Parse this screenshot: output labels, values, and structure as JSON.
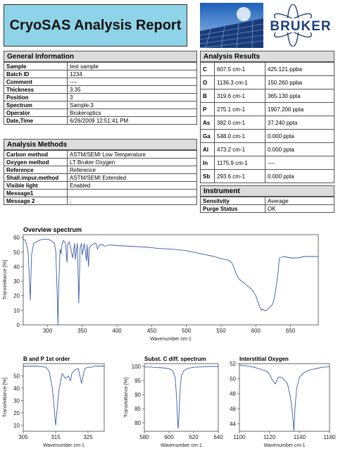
{
  "header": {
    "title": "CryoSAS Analysis Report",
    "logo_text": "BRUKER",
    "colors": {
      "title_bg": "#8fd3e8",
      "logo": "#1f3f7a",
      "accent_blue": "#3a5ba8"
    }
  },
  "general": {
    "heading": "General Information",
    "rows": [
      {
        "k": "Sample",
        "v": "test sample"
      },
      {
        "k": "Batch ID",
        "v": "1234"
      },
      {
        "k": "Comment",
        "v": "----"
      },
      {
        "k": "Thickness",
        "v": "3.35"
      },
      {
        "k": "Position",
        "v": "3"
      },
      {
        "k": "Spectrum",
        "v": "Sample.3"
      },
      {
        "k": "Operator",
        "v": "Brukeroptics"
      },
      {
        "k": "Date,Time",
        "v": "6/26/2009 12:51:41 PM"
      }
    ]
  },
  "methods": {
    "heading": "Analysis Methods",
    "rows": [
      {
        "k": "Carbon method",
        "v": "ASTM/SEMI Low Temperature"
      },
      {
        "k": "Oxygen method",
        "v": "LT Bruker Oxygen"
      },
      {
        "k": "Reference",
        "v": "Reference"
      },
      {
        "k": "Shall.impur.method",
        "v": "ASTM/SEMI Extended"
      },
      {
        "k": "Visible light",
        "v": "Enabled"
      },
      {
        "k": "Message1",
        "v": ""
      },
      {
        "k": "Message 2",
        "v": ";"
      }
    ]
  },
  "results": {
    "heading": "Analysis Results",
    "rows": [
      {
        "el": "C",
        "pos": "607.5 cm-1",
        "val": "425.121 ppba"
      },
      {
        "el": "O",
        "pos": "1136.3 cm-1",
        "val": "150.260 ppba"
      },
      {
        "el": "B",
        "pos": "319.6 cm-1",
        "val": "365.130 ppta"
      },
      {
        "el": "P",
        "pos": "275.1 cm-1",
        "val": "1907.200 ppta"
      },
      {
        "el": "As",
        "pos": "382.0 cm-1",
        "val": "37.240 ppta"
      },
      {
        "el": "Ga",
        "pos": "548.0 cm-1",
        "val": "0.000 ppta"
      },
      {
        "el": "Al",
        "pos": "473.2 cm-1",
        "val": "0.000 ppta"
      },
      {
        "el": "In",
        "pos": "1175.9 cm-1",
        "val": "----"
      },
      {
        "el": "Sb",
        "pos": "293.6 cm-1",
        "val": "0.000 ppta"
      }
    ]
  },
  "instrument": {
    "heading": "Instrument",
    "rows": [
      {
        "k": "Sensitvity",
        "v": "Average"
      },
      {
        "k": "Purge Status",
        "v": "OK"
      }
    ]
  },
  "chart_data": [
    {
      "type": "line",
      "title": "Overview spectrum",
      "xlabel": "Wavenumber cm-1",
      "ylabel": "Transmittance [%]",
      "xlim": [
        265,
        690
      ],
      "ylim": [
        0,
        62
      ],
      "xticks": [
        300,
        350,
        400,
        450,
        500,
        550,
        600,
        650
      ],
      "yticks": [
        0,
        10,
        20,
        30,
        40,
        50,
        60
      ],
      "x": [
        265,
        268,
        270,
        272,
        274,
        275.1,
        277,
        280,
        290,
        300,
        305,
        310,
        312,
        314,
        315,
        316,
        318,
        319.6,
        321,
        323,
        326,
        328,
        329,
        331,
        333,
        336,
        339,
        340,
        343,
        345,
        347,
        349,
        350,
        353,
        356,
        357,
        359,
        360,
        365,
        370,
        372,
        375,
        380,
        382,
        390,
        400,
        420,
        440,
        460,
        480,
        500,
        520,
        540,
        550,
        560,
        565,
        568,
        571,
        574,
        577,
        580,
        585,
        590,
        595,
        600,
        603,
        606,
        608,
        610,
        612,
        615,
        618,
        620,
        622,
        624,
        626,
        628,
        630,
        632,
        634,
        640,
        650,
        660,
        670,
        680,
        690
      ],
      "y": [
        59,
        58,
        55,
        50,
        30,
        17,
        48,
        56,
        58.5,
        59,
        58,
        56,
        50,
        20,
        0,
        25,
        52,
        49,
        56,
        58,
        56,
        43,
        55,
        57,
        54,
        46,
        56,
        45,
        56,
        15,
        53,
        56,
        48,
        56,
        44,
        55,
        40,
        53,
        55.5,
        56,
        52,
        55,
        55,
        54,
        55,
        54.5,
        54,
        53.5,
        52.5,
        52,
        51,
        49,
        47,
        45.5,
        44.5,
        43,
        40,
        36,
        33,
        31,
        30,
        28,
        26,
        24,
        20,
        16,
        12,
        10,
        11,
        10,
        10,
        11,
        12,
        13,
        14,
        17,
        22,
        28,
        36,
        46,
        47,
        46,
        46,
        47,
        47,
        47
      ]
    },
    {
      "type": "line",
      "title": "B and P 1st order",
      "xlabel": "Wavenumber cm-1",
      "ylabel": "Transmittance [%]",
      "xlim": [
        305,
        330
      ],
      "ylim": [
        5,
        60
      ],
      "xticks": [
        305,
        315,
        325
      ],
      "yticks": [
        10,
        20,
        30,
        40,
        50
      ],
      "x": [
        305,
        307,
        309,
        311,
        312,
        313,
        314,
        315,
        316,
        317,
        318,
        319,
        319.6,
        320,
        321,
        322,
        323,
        324,
        325,
        326,
        327,
        328,
        330
      ],
      "y": [
        58,
        58,
        58,
        57.5,
        57,
        54,
        40,
        10,
        38,
        52,
        48,
        50,
        46,
        52,
        55,
        56,
        44,
        56,
        57,
        57,
        58,
        58,
        58
      ]
    },
    {
      "type": "line",
      "title": "Subst. C diff. spectrum",
      "xlabel": "Wavenumber cm-1",
      "ylabel": "Transmittance [%]",
      "xlim": [
        580,
        640
      ],
      "ylim": [
        77,
        101
      ],
      "xticks": [
        580,
        600,
        620,
        640
      ],
      "yticks": [
        80,
        85,
        90,
        95,
        100
      ],
      "x": [
        580,
        585,
        590,
        595,
        600,
        603,
        605,
        606,
        607,
        607.5,
        608,
        609,
        610,
        612,
        615,
        620,
        625,
        630,
        635,
        640
      ],
      "y": [
        99.8,
        99.8,
        99.6,
        99.5,
        99.2,
        98.5,
        96,
        90,
        80,
        78,
        82,
        92,
        96.5,
        98.5,
        99.3,
        99.7,
        99.8,
        99.9,
        100,
        100
      ]
    },
    {
      "type": "line",
      "title": "Interstitial Oxygen",
      "xlabel": "Wavenumber cm-1",
      "ylabel": "Transmittance [%]",
      "xlim": [
        1100,
        1160
      ],
      "ylim": [
        43,
        52
      ],
      "xticks": [
        1100,
        1120,
        1140,
        1160
      ],
      "yticks": [
        44,
        46,
        48,
        50,
        52
      ],
      "x": [
        1100,
        1105,
        1110,
        1115,
        1118,
        1120,
        1122,
        1124,
        1126,
        1128,
        1130,
        1132,
        1134,
        1135,
        1136.3,
        1137,
        1138,
        1140,
        1143,
        1146,
        1150,
        1155,
        1160
      ],
      "y": [
        51.8,
        51.7,
        51.5,
        51.2,
        51,
        50.6,
        49.8,
        49.3,
        50.2,
        50.2,
        49.8,
        49.3,
        47.5,
        46,
        43.1,
        46,
        48.6,
        50.2,
        50.8,
        51.1,
        51.3,
        51.5,
        51.6
      ]
    }
  ]
}
